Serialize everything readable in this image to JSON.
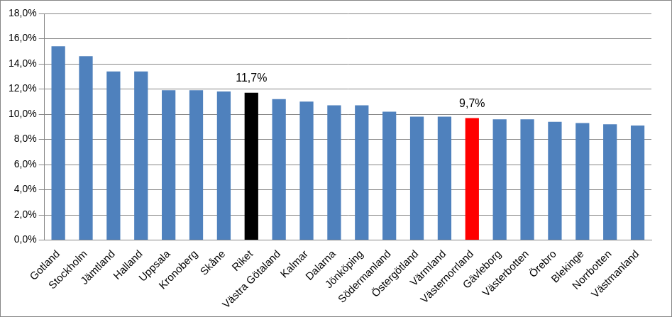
{
  "chart_data": {
    "type": "bar",
    "categories": [
      "Gotland",
      "Stockholm",
      "Jämtland",
      "Halland",
      "Uppsala",
      "Kronoberg",
      "Skåne",
      "Riket",
      "Västra Götaland",
      "Kalmar",
      "Dalarna",
      "Jönköping",
      "Södermanland",
      "Östergötland",
      "Värmland",
      "Västernorrland",
      "Gävleborg",
      "Västerbotten",
      "Örebro",
      "Blekinge",
      "Norrbotten",
      "Västmanland"
    ],
    "values": [
      15.4,
      14.6,
      13.4,
      13.4,
      11.9,
      11.9,
      11.8,
      11.7,
      11.2,
      11.0,
      10.7,
      10.7,
      10.2,
      9.8,
      9.8,
      9.7,
      9.6,
      9.6,
      9.4,
      9.3,
      9.2,
      9.1
    ],
    "colors": [
      "#4f81bd",
      "#4f81bd",
      "#4f81bd",
      "#4f81bd",
      "#4f81bd",
      "#4f81bd",
      "#4f81bd",
      "#000000",
      "#4f81bd",
      "#4f81bd",
      "#4f81bd",
      "#4f81bd",
      "#4f81bd",
      "#4f81bd",
      "#4f81bd",
      "#ff0000",
      "#4f81bd",
      "#4f81bd",
      "#4f81bd",
      "#4f81bd",
      "#4f81bd",
      "#4f81bd"
    ],
    "annotations": [
      {
        "category": "Riket",
        "text": "11,7%"
      },
      {
        "category": "Västernorrland",
        "text": "9,7%"
      }
    ],
    "ylim": [
      0,
      18
    ],
    "yticks": [
      {
        "value": 0,
        "label": "0,0%"
      },
      {
        "value": 2,
        "label": "2,0%"
      },
      {
        "value": 4,
        "label": "4,0%"
      },
      {
        "value": 6,
        "label": "6,0%"
      },
      {
        "value": 8,
        "label": "8,0%"
      },
      {
        "value": 10,
        "label": "10,0%"
      },
      {
        "value": 12,
        "label": "12,0%"
      },
      {
        "value": 14,
        "label": "14,0%"
      },
      {
        "value": 16,
        "label": "16,0%"
      },
      {
        "value": 18,
        "label": "18,0%"
      }
    ],
    "grid": true
  }
}
